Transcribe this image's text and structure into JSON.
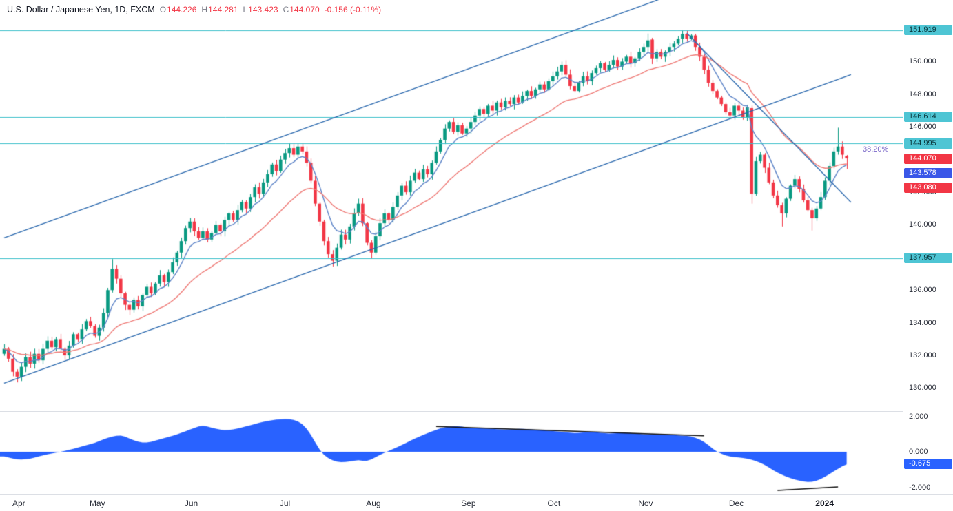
{
  "legend": {
    "title": "U.S. Dollar / Japanese Yen, 1D, FXCM",
    "ohlc": [
      {
        "k": "O",
        "v": "144.226"
      },
      {
        "k": "H",
        "v": "144.281"
      },
      {
        "k": "L",
        "v": "143.423"
      },
      {
        "k": "C",
        "v": "144.070"
      }
    ],
    "change": "-0.156 (-0.11%)"
  },
  "fib_label": {
    "text": "38.20%",
    "price": 144.995
  },
  "axis": {
    "price_ticks": [
      {
        "label": "150.000",
        "price": 150
      },
      {
        "label": "148.000",
        "price": 148
      },
      {
        "label": "146.000",
        "price": 146
      },
      {
        "label": "144.000",
        "price": 144
      },
      {
        "label": "142.000",
        "price": 142
      },
      {
        "label": "140.000",
        "price": 140
      },
      {
        "label": "138.000",
        "price": 138
      },
      {
        "label": "136.000",
        "price": 136
      },
      {
        "label": "134.000",
        "price": 134
      },
      {
        "label": "132.000",
        "price": 132
      },
      {
        "label": "130.000",
        "price": 130
      }
    ],
    "badges": [
      {
        "label": "151.919",
        "price": 151.919,
        "type": "level"
      },
      {
        "label": "146.614",
        "price": 146.614,
        "type": "level"
      },
      {
        "label": "144.995",
        "price": 144.995,
        "type": "level"
      },
      {
        "label": "144.070",
        "price": 144.07,
        "type": "last"
      },
      {
        "label": "143.578",
        "price": 143.578,
        "type": "ma-fast"
      },
      {
        "label": "143.080",
        "price": 143.08,
        "type": "ma-slow"
      },
      {
        "label": "137.957",
        "price": 137.957,
        "type": "level"
      }
    ],
    "indicator_ticks": [
      {
        "label": "2.000",
        "value": 2
      },
      {
        "label": "0.000",
        "value": 0
      },
      {
        "label": "-2.000",
        "value": -2
      }
    ],
    "indicator_badge": {
      "label": "-0.675",
      "value": -0.675
    },
    "time_labels": [
      {
        "label": "Apr",
        "day": 0
      },
      {
        "label": "May",
        "day": 22
      },
      {
        "label": "Jun",
        "day": 44
      },
      {
        "label": "Jul",
        "day": 66
      },
      {
        "label": "Aug",
        "day": 86
      },
      {
        "label": "Sep",
        "day": 108
      },
      {
        "label": "Oct",
        "day": 128
      },
      {
        "label": "Nov",
        "day": 149
      },
      {
        "label": "Dec",
        "day": 170
      },
      {
        "label": "2024",
        "day": 190,
        "bold": true
      }
    ]
  },
  "chart_data": {
    "type": "candlestick",
    "title": "U.S. Dollar / Japanese Yen, 1D, FXCM",
    "legend_position": "top-left",
    "grid": false,
    "price_pane": {
      "ylim": [
        128.6,
        153.8
      ],
      "closes": [
        132.4,
        131.8,
        131.0,
        130.7,
        131.3,
        131.9,
        131.5,
        132.1,
        131.7,
        132.4,
        132.9,
        132.5,
        133.0,
        132.4,
        132.0,
        132.6,
        133.3,
        133.0,
        133.6,
        134.1,
        133.8,
        133.2,
        133.7,
        134.6,
        136.0,
        137.3,
        136.7,
        135.8,
        135.1,
        134.8,
        135.4,
        135.0,
        135.7,
        136.2,
        135.8,
        136.4,
        136.9,
        136.5,
        137.1,
        137.7,
        138.3,
        139.0,
        139.8,
        140.2,
        139.6,
        139.2,
        139.6,
        139.1,
        139.5,
        140.0,
        139.6,
        140.3,
        140.7,
        140.3,
        140.9,
        141.4,
        141.0,
        141.7,
        142.3,
        141.9,
        142.6,
        143.1,
        143.7,
        143.3,
        144.0,
        144.4,
        144.7,
        144.3,
        144.8,
        144.5,
        143.8,
        142.7,
        141.3,
        140.2,
        139.0,
        138.2,
        137.8,
        138.6,
        139.4,
        139.1,
        139.9,
        140.7,
        141.3,
        140.1,
        138.9,
        138.3,
        139.3,
        140.1,
        140.7,
        140.3,
        141.1,
        141.8,
        142.4,
        142.0,
        142.7,
        143.2,
        142.8,
        143.4,
        143.1,
        143.8,
        144.5,
        145.2,
        145.9,
        146.3,
        145.7,
        146.1,
        145.6,
        145.9,
        146.3,
        146.7,
        147.1,
        146.8,
        147.3,
        147.0,
        147.5,
        147.2,
        147.6,
        147.4,
        147.8,
        147.5,
        147.9,
        148.2,
        147.9,
        148.3,
        148.6,
        148.3,
        148.8,
        149.1,
        149.4,
        149.8,
        149.2,
        148.5,
        148.2,
        148.7,
        149.1,
        148.8,
        149.3,
        149.6,
        149.9,
        149.5,
        149.8,
        150.1,
        149.7,
        150.0,
        150.3,
        149.9,
        150.2,
        150.6,
        150.9,
        151.3,
        150.2,
        150.6,
        150.3,
        150.6,
        150.9,
        151.1,
        151.4,
        151.7,
        151.4,
        151.6,
        150.9,
        150.3,
        149.5,
        148.7,
        148.2,
        147.8,
        147.4,
        146.9,
        146.7,
        147.3,
        147.0,
        146.6,
        147.2,
        141.9,
        143.9,
        144.3,
        143.5,
        142.6,
        141.8,
        141.2,
        140.7,
        141.6,
        142.4,
        142.8,
        142.2,
        141.5,
        140.9,
        140.4,
        141.0,
        141.7,
        142.7,
        143.6,
        144.5,
        144.8,
        144.3,
        144.07
      ],
      "ohlc_overrides": {
        "3": [
          131.0,
          131.15,
          130.35,
          130.7
        ],
        "25": [
          136.0,
          137.9,
          135.85,
          137.3
        ],
        "68": [
          144.3,
          145.0,
          144.1,
          144.8
        ],
        "76": [
          138.2,
          138.45,
          137.45,
          137.8
        ],
        "85": [
          138.9,
          139.05,
          137.95,
          138.3
        ],
        "149": [
          150.9,
          151.72,
          150.6,
          151.3
        ],
        "150": [
          151.35,
          151.45,
          149.85,
          150.2
        ],
        "157": [
          151.4,
          151.92,
          151.15,
          151.7
        ],
        "173": [
          147.15,
          147.3,
          141.3,
          141.9
        ],
        "180": [
          141.2,
          141.35,
          139.9,
          140.7
        ],
        "187": [
          140.9,
          141.05,
          139.65,
          140.4
        ],
        "193": [
          144.5,
          145.95,
          144.3,
          144.8
        ],
        "195": [
          144.226,
          144.281,
          143.423,
          144.07
        ]
      },
      "last_close": 144.07,
      "ma_fast_value": 143.578,
      "ma_slow_value": 143.08,
      "levels": [
        {
          "price": 151.919
        },
        {
          "price": 146.614
        },
        {
          "price": 144.995,
          "fib": "38.20%"
        },
        {
          "price": 137.957
        }
      ],
      "trendlines": [
        {
          "name": "channel-upper",
          "from": [
            0,
            139.2
          ],
          "to": [
            152,
            153.85
          ]
        },
        {
          "name": "channel-lower",
          "from": [
            0,
            130.3
          ],
          "to": [
            196,
            149.2
          ]
        },
        {
          "name": "downtrend",
          "from": [
            158,
            151.75
          ],
          "to": [
            196,
            141.38
          ]
        }
      ]
    },
    "indicator_pane": {
      "type": "area",
      "ylim": [
        -2.3,
        2.25
      ],
      "last_value": -0.675,
      "anchors": [
        [
          0,
          -0.25
        ],
        [
          3,
          -0.45
        ],
        [
          6,
          -0.4
        ],
        [
          9,
          -0.2
        ],
        [
          12,
          -0.05
        ],
        [
          15,
          0.1
        ],
        [
          18,
          0.3
        ],
        [
          21,
          0.5
        ],
        [
          24,
          0.8
        ],
        [
          27,
          0.95
        ],
        [
          29,
          0.75
        ],
        [
          31,
          0.55
        ],
        [
          33,
          0.5
        ],
        [
          36,
          0.7
        ],
        [
          39,
          0.9
        ],
        [
          42,
          1.15
        ],
        [
          44,
          1.35
        ],
        [
          46,
          1.5
        ],
        [
          48,
          1.35
        ],
        [
          51,
          1.2
        ],
        [
          54,
          1.3
        ],
        [
          57,
          1.5
        ],
        [
          60,
          1.7
        ],
        [
          63,
          1.82
        ],
        [
          66,
          1.85
        ],
        [
          68,
          1.75
        ],
        [
          70,
          1.35
        ],
        [
          72,
          0.55
        ],
        [
          73,
          0.1
        ],
        [
          74,
          -0.2
        ],
        [
          76,
          -0.5
        ],
        [
          78,
          -0.6
        ],
        [
          80,
          -0.55
        ],
        [
          82,
          -0.45
        ],
        [
          84,
          -0.55
        ],
        [
          86,
          -0.3
        ],
        [
          88,
          -0.05
        ],
        [
          90,
          0.15
        ],
        [
          93,
          0.5
        ],
        [
          96,
          0.85
        ],
        [
          99,
          1.15
        ],
        [
          102,
          1.4
        ],
        [
          105,
          1.45
        ],
        [
          108,
          1.35
        ],
        [
          112,
          1.3
        ],
        [
          116,
          1.25
        ],
        [
          120,
          1.3
        ],
        [
          124,
          1.22
        ],
        [
          128,
          1.15
        ],
        [
          132,
          1.05
        ],
        [
          136,
          1.12
        ],
        [
          140,
          1.02
        ],
        [
          144,
          1.08
        ],
        [
          148,
          0.98
        ],
        [
          152,
          1.02
        ],
        [
          156,
          0.92
        ],
        [
          159,
          0.88
        ],
        [
          161,
          0.7
        ],
        [
          163,
          0.4
        ],
        [
          164,
          0.15
        ],
        [
          165,
          0.0
        ],
        [
          166,
          -0.12
        ],
        [
          168,
          -0.28
        ],
        [
          170,
          -0.32
        ],
        [
          172,
          -0.38
        ],
        [
          174,
          -0.52
        ],
        [
          176,
          -0.72
        ],
        [
          178,
          -1.05
        ],
        [
          180,
          -1.3
        ],
        [
          182,
          -1.5
        ],
        [
          184,
          -1.62
        ],
        [
          186,
          -1.72
        ],
        [
          188,
          -1.65
        ],
        [
          190,
          -1.42
        ],
        [
          192,
          -1.1
        ],
        [
          194,
          -0.82
        ],
        [
          195,
          -0.675
        ]
      ],
      "divergence_lines": [
        {
          "from": [
            100,
            1.43
          ],
          "to": [
            162,
            0.9
          ]
        },
        {
          "from": [
            179,
            -2.17
          ],
          "to": [
            193,
            -1.98
          ]
        }
      ]
    }
  },
  "colors": {
    "up": "#089981",
    "down": "#f23645",
    "level_line": "#3bbfca",
    "level_badge": "#4ec5d4",
    "trendline": "#2766ad",
    "ma_fast": "#5d84c8",
    "ma_slow": "#ef7a76",
    "indicator_fill": "#2962ff",
    "divergence": "#111111",
    "fib_text": "#7b68c9",
    "badge_last": "#f23645",
    "badge_ma_fast": "#3a57e8"
  }
}
